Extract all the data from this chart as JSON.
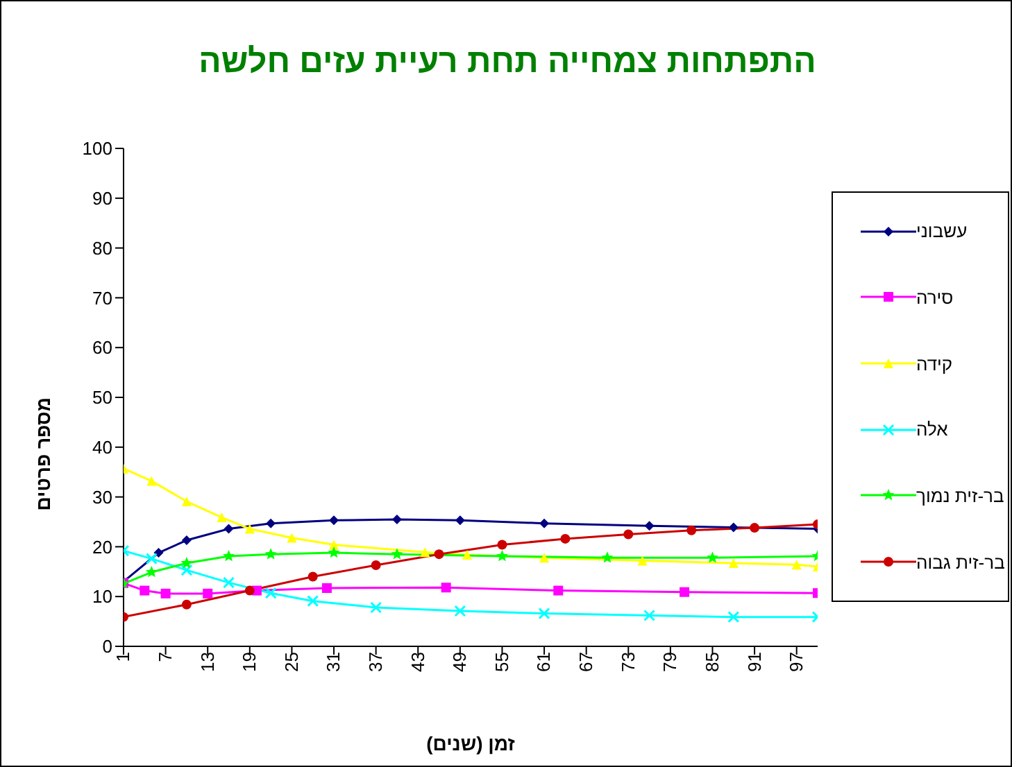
{
  "chart_data": {
    "type": "line",
    "title": "התפתחות צמחייה תחת רעיית עזים חלשה",
    "xlabel": "זמן (שנים)",
    "ylabel": "מספר פרטים",
    "xlim": [
      1,
      100
    ],
    "xticks": [
      1,
      7,
      13,
      19,
      25,
      31,
      37,
      43,
      49,
      55,
      61,
      67,
      73,
      79,
      85,
      91,
      97
    ],
    "ylim": [
      0,
      100
    ],
    "yticks": [
      0,
      10,
      20,
      30,
      40,
      50,
      60,
      70,
      80,
      90,
      100
    ],
    "grid": false,
    "legend": "right",
    "line_style": "solid",
    "series": [
      {
        "name": "עשבוני",
        "color": "#000080",
        "marker": "diamond",
        "x": [
          1,
          6,
          10,
          16,
          22,
          31,
          40,
          49,
          61,
          76,
          88,
          100
        ],
        "values": [
          13,
          18.8,
          21.3,
          23.6,
          24.7,
          25.3,
          25.5,
          25.3,
          24.7,
          24.2,
          23.9,
          23.6
        ]
      },
      {
        "name": "סירה",
        "color": "#ff00ff",
        "marker": "square",
        "x": [
          1,
          4,
          7,
          13,
          20,
          30,
          47,
          63,
          81,
          100
        ],
        "values": [
          12.7,
          11.2,
          10.6,
          10.6,
          11.2,
          11.7,
          11.8,
          11.2,
          10.9,
          10.7
        ]
      },
      {
        "name": "קידה",
        "color": "#ffff00",
        "marker": "triangle",
        "x": [
          1,
          5,
          10,
          15,
          19,
          25,
          31,
          44,
          50,
          61,
          75,
          88,
          97,
          100
        ],
        "values": [
          35.7,
          33.2,
          29.1,
          25.9,
          23.6,
          21.8,
          20.4,
          18.9,
          18.4,
          17.8,
          17.2,
          16.7,
          16.4,
          16
        ]
      },
      {
        "name": "אלה",
        "color": "#00ffff",
        "marker": "cross",
        "x": [
          1,
          5,
          10,
          16,
          22,
          28,
          37,
          49,
          61,
          76,
          88,
          100
        ],
        "values": [
          19.2,
          17.6,
          15.3,
          12.8,
          10.7,
          9.1,
          7.8,
          7.1,
          6.6,
          6.2,
          5.9,
          5.9
        ]
      },
      {
        "name": "בר-זית נמוך",
        "color": "#00ff00",
        "marker": "star",
        "x": [
          1,
          5,
          10,
          16,
          22,
          31,
          40,
          55,
          70,
          85,
          100
        ],
        "values": [
          12.6,
          14.9,
          16.7,
          18.1,
          18.5,
          18.8,
          18.5,
          18.1,
          17.8,
          17.8,
          18.1
        ]
      },
      {
        "name": "בר-זית גבוה",
        "color": "#cc0000",
        "marker": "circle",
        "x": [
          1,
          10,
          19,
          28,
          37,
          46,
          55,
          64,
          73,
          82,
          91,
          100
        ],
        "values": [
          5.9,
          8.4,
          11.2,
          14,
          16.3,
          18.5,
          20.4,
          21.6,
          22.5,
          23.3,
          23.8,
          24.5
        ]
      }
    ]
  }
}
